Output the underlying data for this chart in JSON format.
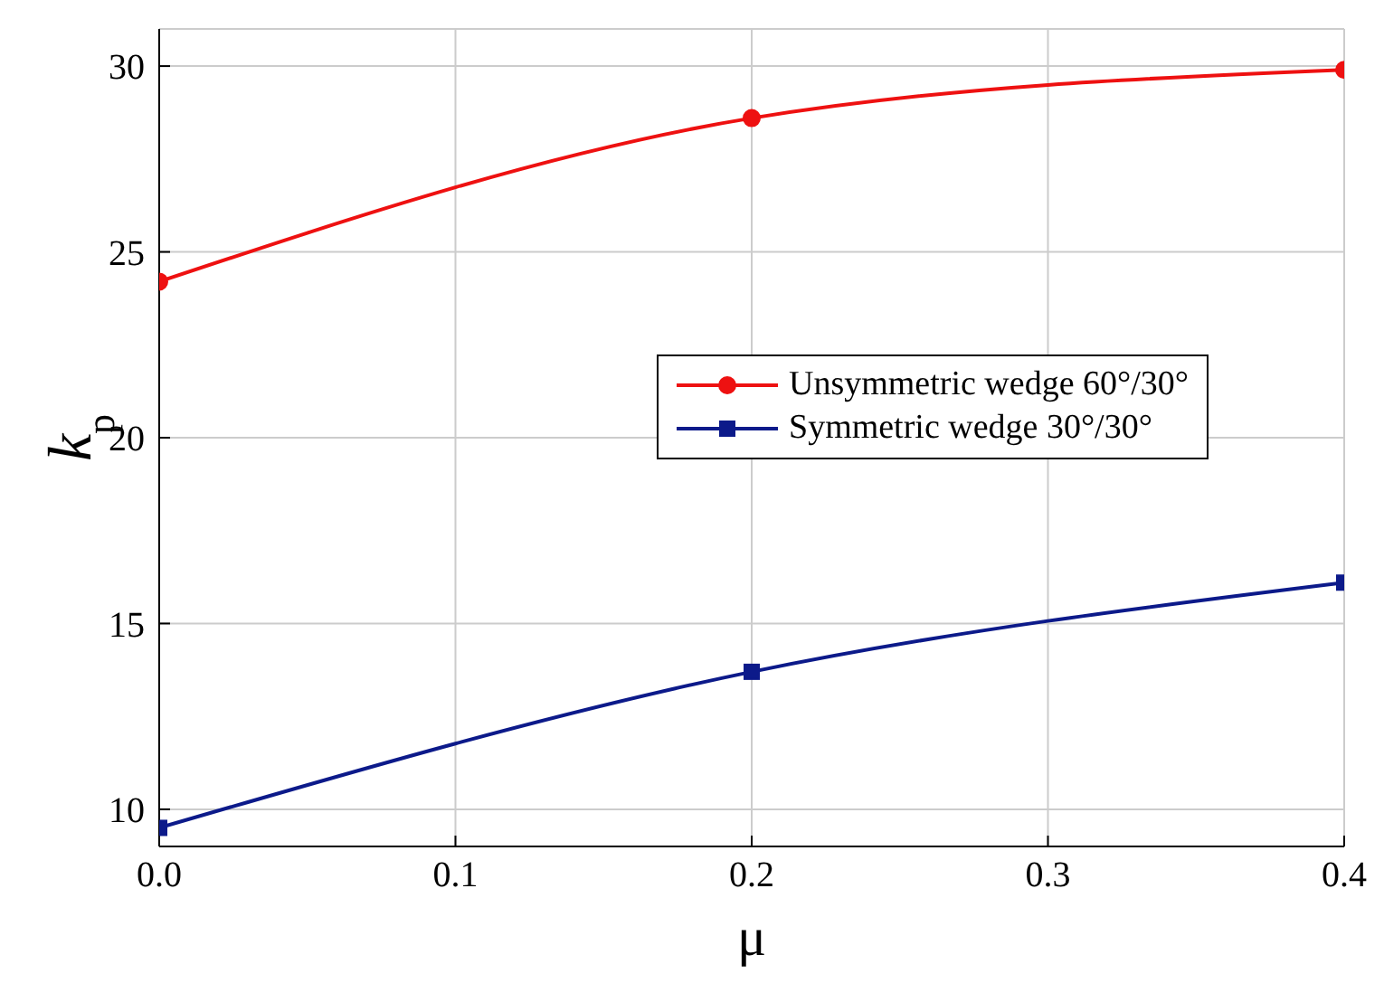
{
  "chart_data": {
    "type": "line",
    "xlabel": "μ",
    "ylabel": "k$_{p}$",
    "x": [
      0,
      0.2,
      0.4
    ],
    "series": [
      {
        "name": "Unsymmetric wedge 60°/30°",
        "color": "#ee1111",
        "values": [
          24.2,
          28.6,
          29.9
        ],
        "marker": "circle"
      },
      {
        "name": "Symmetric wedge 30°/30°",
        "color": "#0c1a8a",
        "values": [
          9.5,
          13.7,
          16.1
        ],
        "marker": "square"
      }
    ],
    "xlim": [
      0,
      0.4
    ],
    "xticks": [
      {
        "value": 0,
        "label": "0.0"
      },
      0.1,
      0.2,
      0.3,
      0.4
    ],
    "ylim": [
      9,
      31
    ],
    "yticks": [
      10,
      15,
      20,
      25,
      30
    ],
    "grid": true,
    "legend": "right",
    "line_style": "solid"
  }
}
